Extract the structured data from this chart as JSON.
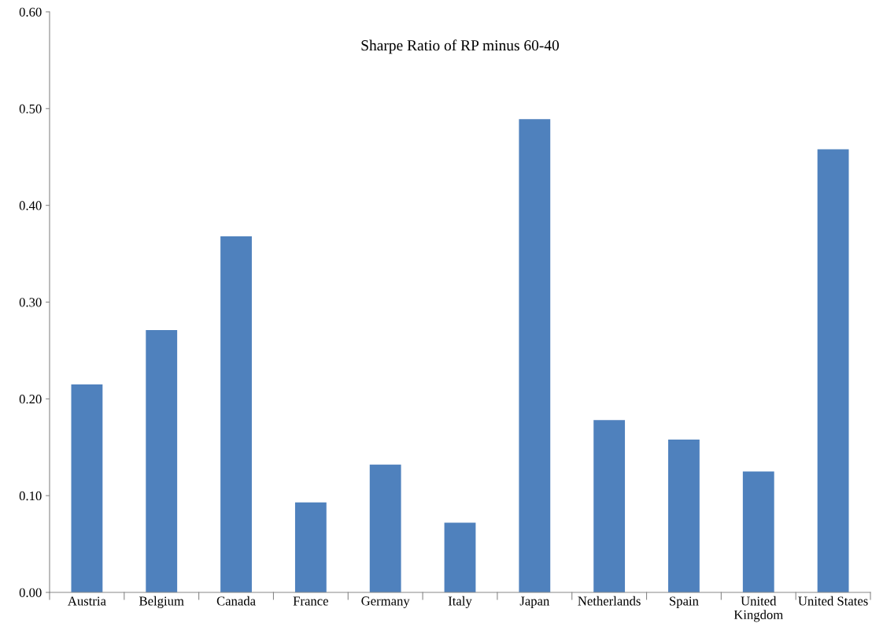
{
  "chart_data": {
    "type": "bar",
    "title": "Sharpe Ratio of RP minus 60-40",
    "categories": [
      "Austria",
      "Belgium",
      "Canada",
      "France",
      "Germany",
      "Italy",
      "Japan",
      "Netherlands",
      "Spain",
      "United\nKingdom",
      "United States"
    ],
    "values": [
      0.215,
      0.271,
      0.368,
      0.093,
      0.132,
      0.072,
      0.489,
      0.178,
      0.158,
      0.125,
      0.458
    ],
    "color": "#4f81bd",
    "ylim": [
      0,
      0.6
    ],
    "yticks": [
      {
        "value": 0,
        "label": "0.00"
      },
      {
        "value": 0.1,
        "label": "0.10"
      },
      {
        "value": 0.2,
        "label": "0.20"
      },
      {
        "value": 0.3,
        "label": "0.30"
      },
      {
        "value": 0.4,
        "label": "0.40"
      },
      {
        "value": 0.5,
        "label": "0.50"
      },
      {
        "value": 0.6,
        "label": "0.60"
      }
    ],
    "grid": false,
    "legend": false
  }
}
